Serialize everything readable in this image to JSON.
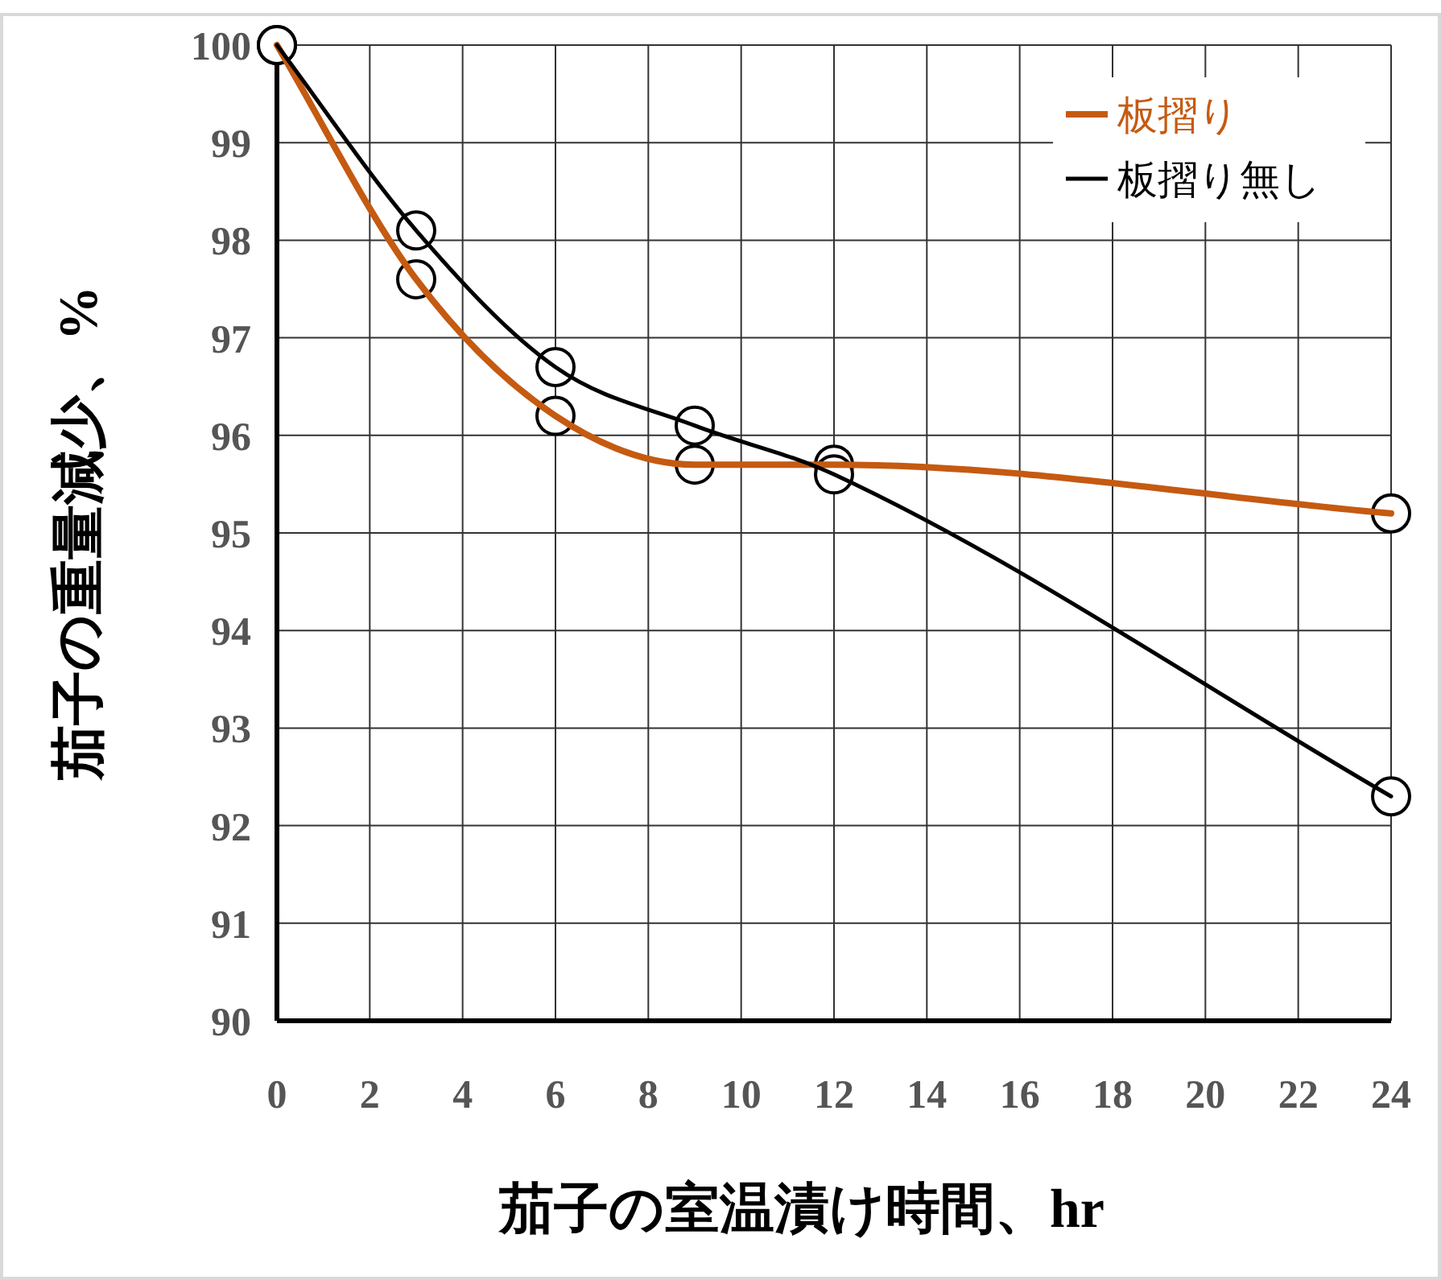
{
  "chart_data": {
    "type": "line",
    "xlabel": "茄子の室温漬け時間、hr",
    "ylabel": "茄子の重量減少、%",
    "x": [
      0,
      3,
      6,
      9,
      12,
      24
    ],
    "series": [
      {
        "name": "板摺り",
        "color": "#c55a11",
        "values": [
          100,
          97.6,
          96.2,
          95.7,
          95.7,
          95.2
        ]
      },
      {
        "name": "板摺り無し",
        "color": "#000000",
        "values": [
          100,
          98.1,
          96.7,
          96.1,
          95.6,
          92.3
        ]
      }
    ],
    "xlim": [
      0,
      24
    ],
    "xticks": [
      0,
      2,
      4,
      6,
      8,
      10,
      12,
      14,
      16,
      18,
      20,
      22,
      24
    ],
    "ylim": [
      90,
      100
    ],
    "yticks": [
      90,
      91,
      92,
      93,
      94,
      95,
      96,
      97,
      98,
      99,
      100
    ],
    "grid": true,
    "legend": "top right",
    "marker": "circle",
    "line_style": "solid"
  }
}
